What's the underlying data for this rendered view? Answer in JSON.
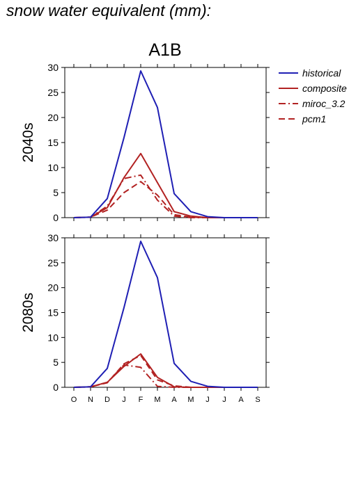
{
  "page": {
    "title": "snow water equivalent (mm):"
  },
  "chart_data": {
    "type": "line",
    "title": "A1B",
    "categories": [
      "O",
      "N",
      "D",
      "J",
      "F",
      "M",
      "A",
      "M",
      "J",
      "J",
      "A",
      "S"
    ],
    "ylim": [
      0,
      30
    ],
    "yticks": [
      0,
      5,
      10,
      15,
      20,
      25,
      30
    ],
    "grid": false,
    "legend": {
      "placement": "top-right",
      "entries": [
        {
          "name": "historical",
          "color": "#1f1fb4",
          "dash": "solid"
        },
        {
          "name": "composite",
          "color": "#b22222",
          "dash": "solid"
        },
        {
          "name": "miroc_3.2",
          "color": "#b22222",
          "dash": "dashdot"
        },
        {
          "name": "pcm1",
          "color": "#b22222",
          "dash": "dashed"
        }
      ]
    },
    "panels": [
      {
        "ylabel": "2040s",
        "series": [
          {
            "name": "historical",
            "values": [
              0,
              0.1,
              3.8,
              16,
              29.3,
              22,
              4.8,
              1.2,
              0.2,
              0,
              0,
              0
            ]
          },
          {
            "name": "composite",
            "values": [
              0,
              0.1,
              2.0,
              8,
              12.8,
              7,
              1.2,
              0.3,
              0,
              0,
              0,
              0
            ]
          },
          {
            "name": "miroc_3.2",
            "values": [
              0,
              0.1,
              2.3,
              7.8,
              8.5,
              3.5,
              0.3,
              0,
              0,
              0,
              0,
              0
            ]
          },
          {
            "name": "pcm1",
            "values": [
              0,
              0.1,
              1.5,
              5,
              7.2,
              4.5,
              0.6,
              0.1,
              0,
              0,
              0,
              0
            ]
          }
        ]
      },
      {
        "ylabel": "2080s",
        "series": [
          {
            "name": "historical",
            "values": [
              0,
              0.1,
              3.8,
              16,
              29.3,
              22,
              4.8,
              1.2,
              0.2,
              0,
              0,
              0
            ]
          },
          {
            "name": "composite",
            "values": [
              0,
              0.1,
              1.0,
              4.2,
              6.7,
              2,
              0.1,
              0,
              0,
              0,
              0,
              0
            ]
          },
          {
            "name": "miroc_3.2",
            "values": [
              0,
              0.1,
              1.0,
              4.5,
              4,
              0.2,
              0,
              0,
              0,
              0,
              0,
              0
            ]
          },
          {
            "name": "pcm1",
            "values": [
              0,
              0.1,
              0.9,
              4.7,
              6.4,
              1.5,
              0.3,
              0,
              0,
              0,
              0,
              0
            ]
          }
        ]
      }
    ]
  }
}
